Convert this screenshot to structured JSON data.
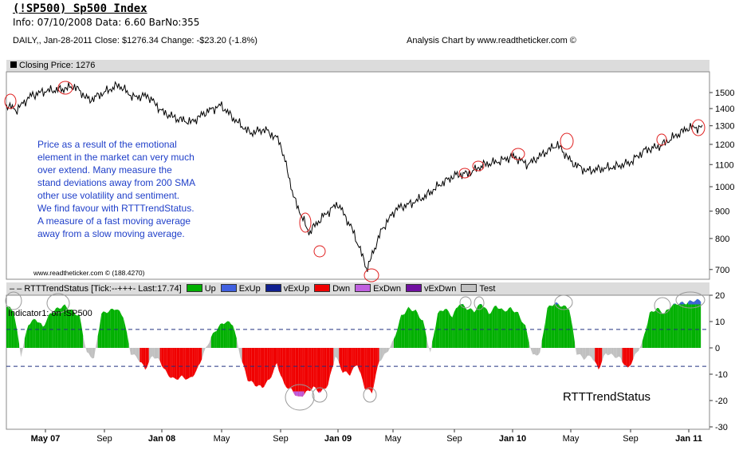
{
  "header": {
    "title": "(!SP500) Sp500 Index",
    "info": "Info: 07/10/2008 Data: 6.60 BarNo:355",
    "daily": "DAILY,, Jan-28-2011  Close: $1276.34  Change: -$23.20  (-1.8%)",
    "analysis": "Analysis Chart by www.readtheticker.com ©"
  },
  "price_panel": {
    "label": "Closing Price: 1276",
    "watermark": "www.readtheticker.com © (188.4270)",
    "note": "Price as a result of the emotional\nelement in the market can very much\nover extend. Many measure the\nstand deviations away from 200 SMA\nother use volatility and sentiment.\nWe find favour with RTTTrendStatus.\nA measure of a fast moving average\naway from a slow moving average."
  },
  "indicator_panel": {
    "label": "RTTTrendStatus [Tick:--+++- Last:17.74]",
    "sub": "Indicator1: on !SP500",
    "name": "RTTTrendStatus",
    "legend": [
      {
        "label": "Up",
        "color": "#00b000"
      },
      {
        "label": "ExUp",
        "color": "#4060e0"
      },
      {
        "label": "vExUp",
        "color": "#102090"
      },
      {
        "label": "Dwn",
        "color": "#f00000"
      },
      {
        "label": "ExDwn",
        "color": "#c060e0"
      },
      {
        "label": "vExDwn",
        "color": "#7010a0"
      },
      {
        "label": "Test",
        "color": "#c0c0c0"
      }
    ]
  },
  "chart_data": [
    {
      "type": "line",
      "title": "Closing Price",
      "scale": "log",
      "ylim": [
        660,
        1600
      ],
      "yticks": [
        700,
        800,
        900,
        1000,
        1100,
        1200,
        1300,
        1400,
        1500
      ],
      "x_start": "Feb 07",
      "x_step": "month",
      "values": [
        1440,
        1390,
        1480,
        1510,
        1520,
        1540,
        1450,
        1500,
        1550,
        1470,
        1480,
        1380,
        1340,
        1320,
        1380,
        1420,
        1330,
        1260,
        1280,
        1220,
        950,
        820,
        880,
        930,
        830,
        700,
        830,
        910,
        930,
        960,
        1010,
        1050,
        1060,
        1100,
        1115,
        1140,
        1100,
        1150,
        1200,
        1110,
        1070,
        1080,
        1090,
        1110,
        1170,
        1190,
        1240,
        1290
      ]
    },
    {
      "type": "area",
      "title": "RTTTrendStatus",
      "ylim": [
        -30,
        22
      ],
      "yticks": [
        20,
        10,
        0,
        -10,
        -20,
        -30
      ],
      "bands": [
        7,
        -7
      ],
      "x_step": "half-month",
      "values": [
        16,
        14,
        -3,
        9,
        11,
        8,
        13,
        15,
        16,
        14,
        12,
        -2,
        -4,
        13,
        14,
        15,
        12,
        -2,
        -4,
        -8,
        -3,
        -5,
        -10,
        -12,
        -11,
        -12,
        -9,
        -2,
        4,
        8,
        10,
        9,
        -3,
        -12,
        -14,
        -15,
        -12,
        -6,
        -14,
        -16,
        -19,
        -17,
        -15,
        -17,
        -14,
        -3,
        -9,
        -10,
        -6,
        -15,
        -17,
        -5,
        -2,
        3,
        12,
        15,
        14,
        10,
        -2,
        13,
        15,
        12,
        17,
        15,
        14,
        17,
        13,
        16,
        14,
        15,
        13,
        8,
        -3,
        -2,
        15,
        17,
        16,
        15,
        -2,
        -4,
        -3,
        -8,
        -2,
        -3,
        -4,
        -8,
        -3,
        2,
        13,
        15,
        13,
        16,
        17,
        17,
        18,
        18
      ]
    },
    {
      "type": "axis",
      "xticks": [
        "May 07",
        "Sep",
        "Jan 08",
        "May",
        "Sep",
        "Jan 09",
        "May",
        "Sep",
        "Jan 10",
        "May",
        "Sep",
        "Jan 11"
      ]
    }
  ]
}
